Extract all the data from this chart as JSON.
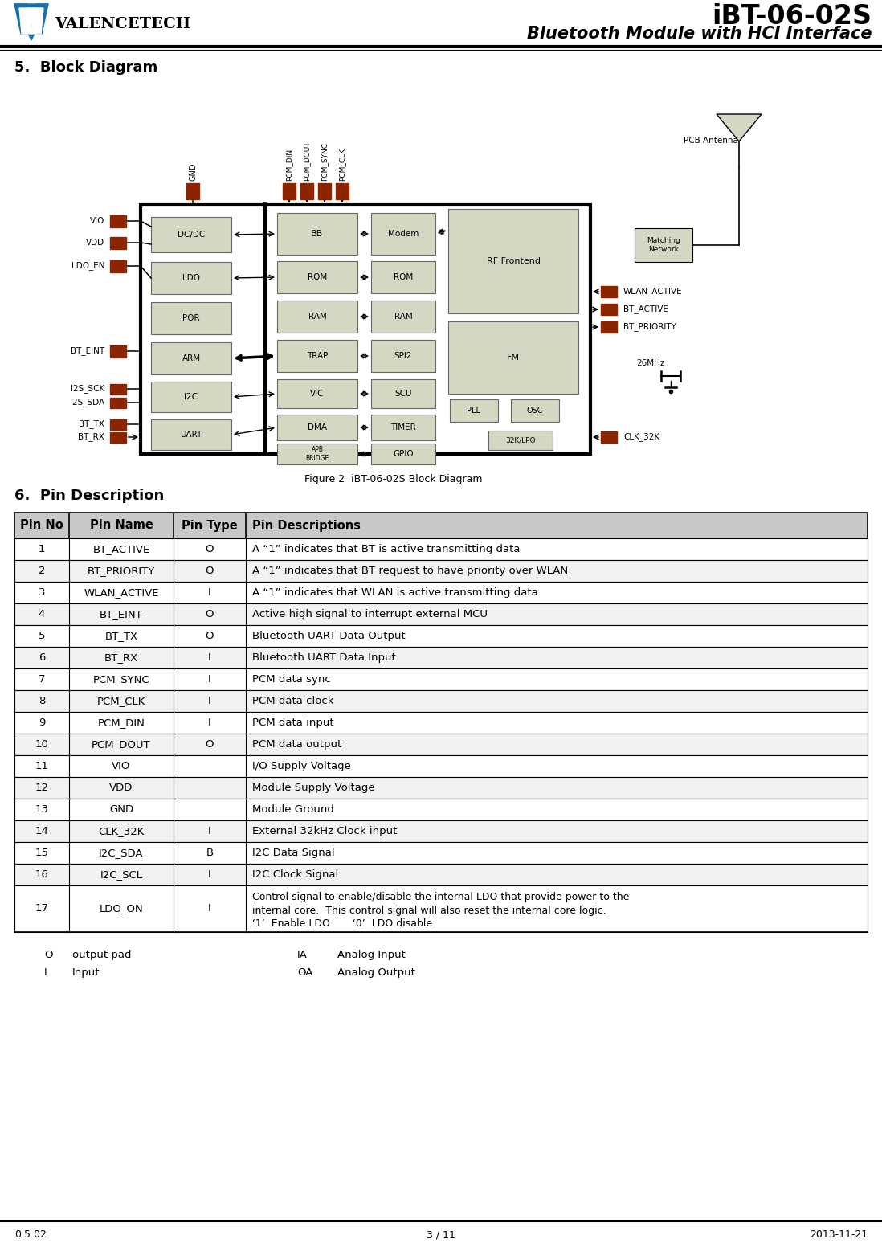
{
  "title1": "iBT-06-02S",
  "title2": "Bluetooth Module with HCI Interface",
  "section5": "5.  Block Diagram",
  "section6": "6.  Pin Description",
  "figure_caption": "Figure 2  iBT-06-02S Block Diagram",
  "footer_left": "0.5.02",
  "footer_center": "3 / 11",
  "footer_right": "2013-11-21",
  "pin_color": "#8B2500",
  "box_fill": "#d4d8c2",
  "box_fill_dark": "#c8ccba",
  "pin_table": [
    [
      "Pin No",
      "Pin Name",
      "Pin Type",
      "Pin Descriptions"
    ],
    [
      "1",
      "BT_ACTIVE",
      "O",
      "A “1” indicates that BT is active transmitting data"
    ],
    [
      "2",
      "BT_PRIORITY",
      "O",
      "A “1” indicates that BT request to have priority over WLAN"
    ],
    [
      "3",
      "WLAN_ACTIVE",
      "I",
      "A “1” indicates that WLAN is active transmitting data"
    ],
    [
      "4",
      "BT_EINT",
      "O",
      "Active high signal to interrupt external MCU"
    ],
    [
      "5",
      "BT_TX",
      "O",
      "Bluetooth UART Data Output"
    ],
    [
      "6",
      "BT_RX",
      "I",
      "Bluetooth UART Data Input"
    ],
    [
      "7",
      "PCM_SYNC",
      "I",
      "PCM data sync"
    ],
    [
      "8",
      "PCM_CLK",
      "I",
      "PCM data clock"
    ],
    [
      "9",
      "PCM_DIN",
      "I",
      "PCM data input"
    ],
    [
      "10",
      "PCM_DOUT",
      "O",
      "PCM data output"
    ],
    [
      "11",
      "VIO",
      "",
      "I/O Supply Voltage"
    ],
    [
      "12",
      "VDD",
      "",
      "Module Supply Voltage"
    ],
    [
      "13",
      "GND",
      "",
      "Module Ground"
    ],
    [
      "14",
      "CLK_32K",
      "I",
      "External 32kHz Clock input"
    ],
    [
      "15",
      "I2C_SDA",
      "B",
      "I2C Data Signal"
    ],
    [
      "16",
      "I2C_SCL",
      "I",
      "I2C Clock Signal"
    ],
    [
      "17",
      "LDO_ON",
      "I",
      "Control signal to enable/disable the internal LDO that provide power to the\ninternal core.  This control signal will also reset the internal core logic.\n‘1’  Enable LDO       ‘0’  LDO disable"
    ]
  ],
  "legend": [
    [
      "O",
      "output pad",
      "IA",
      "Analog Input"
    ],
    [
      "I",
      "Input",
      "OA",
      "Analog Output"
    ]
  ]
}
